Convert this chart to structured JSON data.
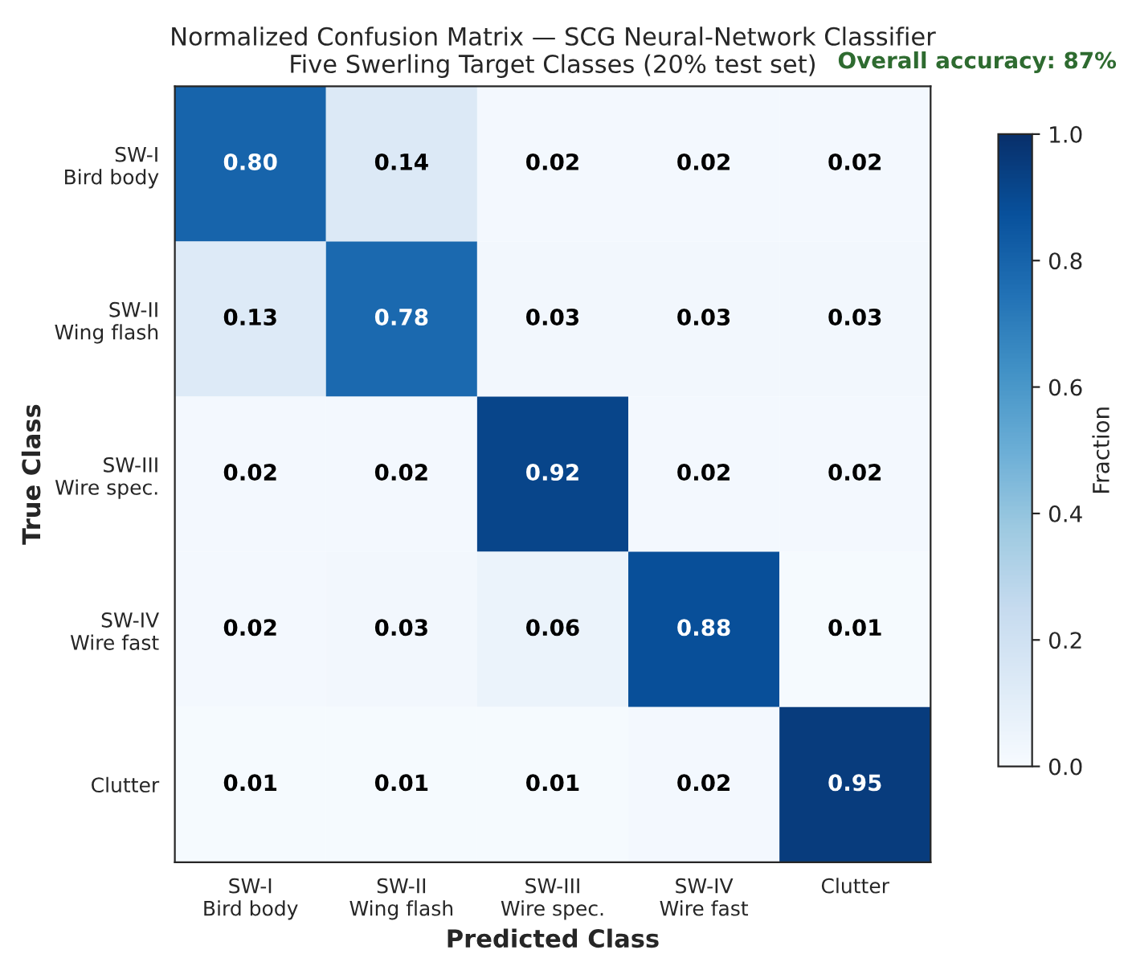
{
  "chart_data": {
    "type": "heatmap",
    "title": "Normalized Confusion Matrix — SCG Neural-Network Classifier",
    "subtitle": "Five Swerling Target Classes (20% test set)",
    "xlabel": "Predicted Class",
    "ylabel": "True Class",
    "clabel": "Fraction",
    "categories": [
      "SW-I\nBird body",
      "SW-II\nWing flash",
      "SW-III\nWire spec.",
      "SW-IV\nWire fast",
      "Clutter"
    ],
    "y_categories": [
      "SW-I\nBird body",
      "SW-II\nWing flash",
      "SW-III\nWire spec.",
      "SW-IV\nWire fast",
      "Clutter"
    ],
    "cells": [
      [
        0.8,
        0.14,
        0.02,
        0.02,
        0.02
      ],
      [
        0.13,
        0.78,
        0.03,
        0.03,
        0.03
      ],
      [
        0.02,
        0.02,
        0.92,
        0.02,
        0.02
      ],
      [
        0.02,
        0.03,
        0.06,
        0.88,
        0.01
      ],
      [
        0.01,
        0.01,
        0.01,
        0.02,
        0.95
      ]
    ],
    "cell_labels": [
      [
        "0.80",
        "0.14",
        "0.02",
        "0.02",
        "0.02"
      ],
      [
        "0.13",
        "0.78",
        "0.03",
        "0.03",
        "0.03"
      ],
      [
        "0.02",
        "0.02",
        "0.92",
        "0.02",
        "0.02"
      ],
      [
        "0.02",
        "0.03",
        "0.06",
        "0.88",
        "0.01"
      ],
      [
        "0.01",
        "0.01",
        "0.01",
        "0.02",
        "0.95"
      ]
    ],
    "clim": [
      0.0,
      1.0
    ],
    "cticks": [
      {
        "value": 0.0,
        "label": "0.0"
      },
      {
        "value": 0.2,
        "label": "0.2"
      },
      {
        "value": 0.4,
        "label": "0.4"
      },
      {
        "value": 0.6,
        "label": "0.6"
      },
      {
        "value": 0.8,
        "label": "0.8"
      },
      {
        "value": 1.0,
        "label": "1.0"
      }
    ],
    "annotations": [
      "Overall accuracy: 87%"
    ]
  }
}
